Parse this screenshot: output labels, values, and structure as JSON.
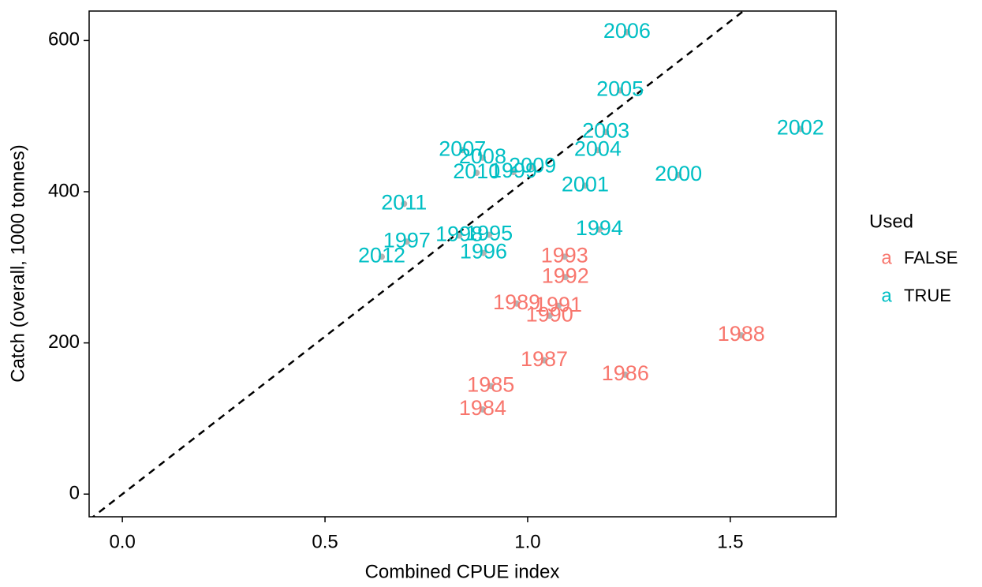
{
  "chart_data": {
    "type": "scatter",
    "x_label": "Combined CPUE index",
    "y_label": "Catch (overall, 1000 tonnes)",
    "xlim": [
      -0.082,
      1.761
    ],
    "ylim": [
      -30,
      639
    ],
    "xticks": [
      {
        "value": 0,
        "label": "0.0"
      },
      {
        "value": 0.5,
        "label": "0.5"
      },
      {
        "value": 1,
        "label": "1.0"
      },
      {
        "value": 1.5,
        "label": "1.5"
      }
    ],
    "yticks": [
      0,
      200,
      400,
      600
    ],
    "reference_line": {
      "slope": 417,
      "color": "#000000",
      "dashed": true
    },
    "point_color": "#b3b3b3",
    "legend_title": "Used",
    "legend_glyph": "a",
    "legend_position": "right",
    "series": [
      {
        "name": "FALSE",
        "color": "#F8766D",
        "labels": [
          "1984",
          "1985",
          "1986",
          "1987",
          "1988",
          "1989",
          "1990",
          "1991",
          "1992",
          "1993"
        ],
        "x": [
          0.889,
          0.909,
          1.241,
          1.041,
          1.527,
          0.973,
          1.054,
          1.076,
          1.093,
          1.091
        ],
        "values": [
          112,
          143,
          158,
          177,
          210,
          252,
          236,
          249,
          287,
          314
        ]
      },
      {
        "name": "TRUE",
        "color": "#00BFC4",
        "labels": [
          "1994",
          "1995",
          "1996",
          "1997",
          "1998",
          "1999",
          "2000",
          "2001",
          "2002",
          "2003",
          "2004",
          "2005",
          "2006",
          "2007",
          "2008",
          "2009",
          "2010",
          "2011",
          "2012"
        ],
        "x": [
          1.177,
          0.905,
          0.891,
          0.702,
          0.831,
          0.965,
          1.372,
          1.142,
          1.673,
          1.193,
          1.173,
          1.228,
          1.245,
          0.839,
          0.889,
          1.012,
          0.874,
          0.695,
          0.64
        ],
        "values": [
          350,
          343,
          319,
          334,
          342,
          426,
          422,
          408,
          483,
          479,
          455,
          534,
          611,
          455,
          445,
          433,
          425,
          384,
          314
        ]
      }
    ]
  }
}
